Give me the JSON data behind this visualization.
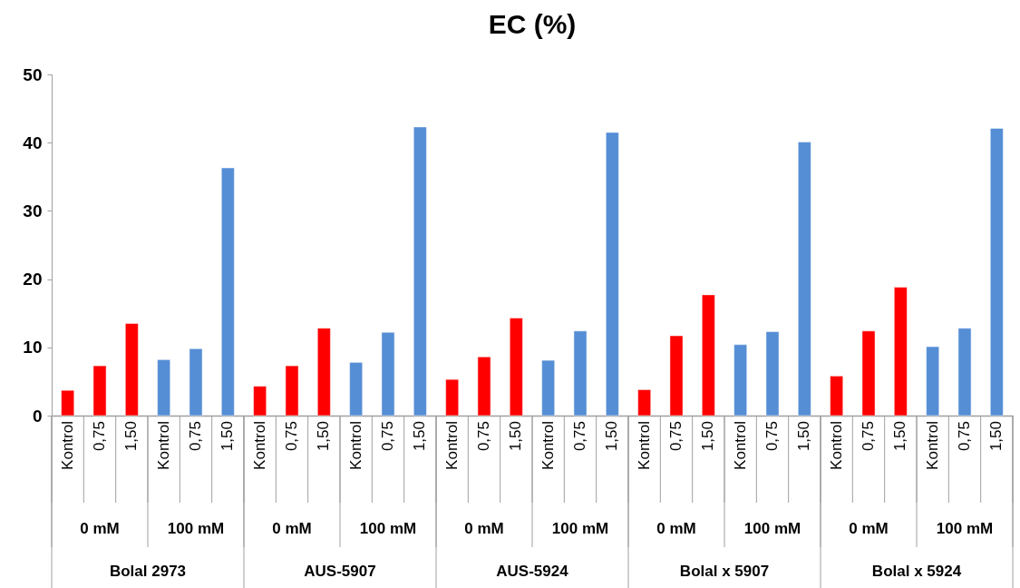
{
  "chart_data": {
    "type": "bar",
    "title": "EC (%)",
    "categories": [
      "Kontrol",
      "0,75",
      "1,50",
      "Kontrol",
      "0,75",
      "1,50",
      "Kontrol",
      "0,75",
      "1,50",
      "Kontrol",
      "0,75",
      "1,50",
      "Kontrol",
      "0,75",
      "1,50",
      "Kontrol",
      "0,75",
      "1,50",
      "Kontrol",
      "0,75",
      "1,50",
      "Kontrol",
      "0,75",
      "1,50",
      "Kontrol",
      "0,75",
      "1,50",
      "Kontrol",
      "0,75",
      "1,50"
    ],
    "values": [
      3.7,
      7.3,
      13.5,
      8.2,
      9.8,
      36.3,
      4.3,
      7.3,
      12.8,
      7.8,
      12.2,
      42.3,
      5.3,
      8.6,
      14.3,
      8.1,
      12.4,
      41.5,
      3.8,
      11.7,
      17.7,
      10.4,
      12.3,
      40.1,
      5.8,
      12.4,
      18.8,
      10.1,
      12.8,
      42.1
    ],
    "colors": [
      "#ff0000",
      "#ff0000",
      "#ff0000",
      "#558ed5",
      "#558ed5",
      "#558ed5",
      "#ff0000",
      "#ff0000",
      "#ff0000",
      "#558ed5",
      "#558ed5",
      "#558ed5",
      "#ff0000",
      "#ff0000",
      "#ff0000",
      "#558ed5",
      "#558ed5",
      "#558ed5",
      "#ff0000",
      "#ff0000",
      "#ff0000",
      "#558ed5",
      "#558ed5",
      "#558ed5",
      "#ff0000",
      "#ff0000",
      "#ff0000",
      "#558ed5",
      "#558ed5",
      "#558ed5"
    ],
    "annotations": [
      "0 mM",
      "100 mM",
      "0 mM",
      "100 mM",
      "0 mM",
      "100 mM",
      "0 mM",
      "100 mM",
      "0 mM",
      "100 mM",
      "Bolal 2973",
      "AUS-5907",
      "AUS-5924",
      "Bolal x 5907",
      "Bolal x 5924"
    ],
    "ylim": [
      0,
      50
    ],
    "yticks": [
      0,
      10,
      20,
      30,
      40,
      50
    ],
    "grid": false
  }
}
